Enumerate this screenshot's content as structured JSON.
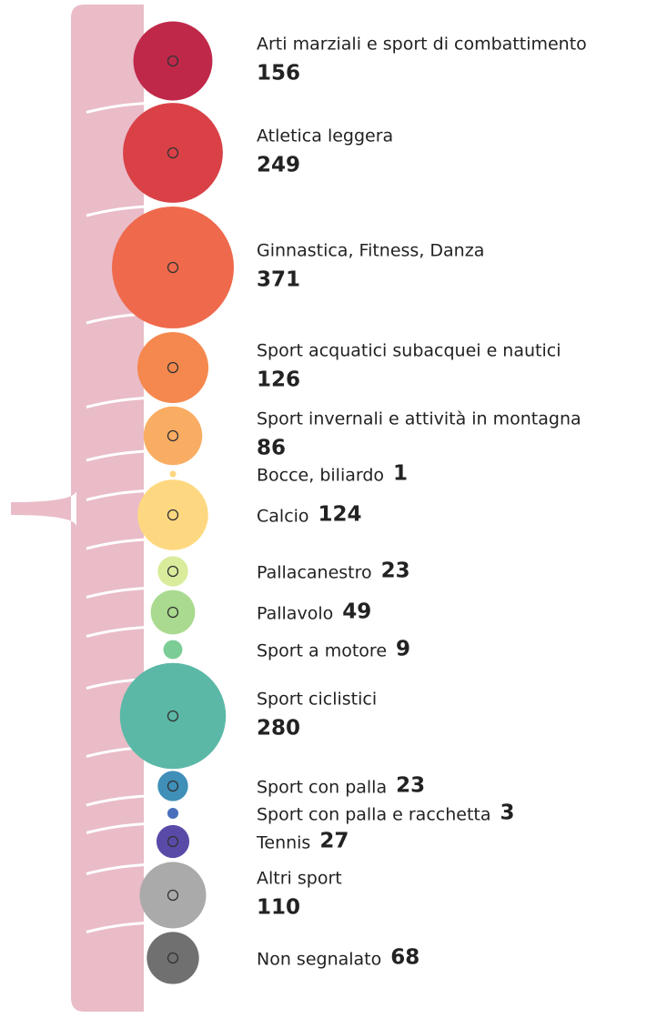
{
  "chart_data": {
    "type": "bubble",
    "categories": [
      "Arti marziali e sport di combattimento",
      "Atletica leggera",
      "Ginnastica, Fitness, Danza",
      "Sport acquatici subacquei e nautici",
      "Sport invernali e attività in montagna",
      "Bocce, biliardo",
      "Calcio",
      "Pallacanestro",
      "Pallavolo",
      "Sport a motore",
      "Sport ciclistici",
      "Sport con palla",
      "Sport con palla e racchetta",
      "Tennis",
      "Altri sport",
      "Non segnalato"
    ],
    "values": [
      156,
      249,
      371,
      126,
      86,
      1,
      124,
      23,
      49,
      9,
      280,
      23,
      3,
      27,
      110,
      68
    ],
    "colors": [
      "#c0284a",
      "#d94147",
      "#ef6a4c",
      "#f5884e",
      "#f9ad62",
      "#fcd77f",
      "#fed880",
      "#d8ec9c",
      "#a9da8f",
      "#7ccc96",
      "#5bb8a6",
      "#3f8fb8",
      "#4a6fbd",
      "#5a4aa8",
      "#aaaaaa",
      "#707070"
    ]
  }
}
